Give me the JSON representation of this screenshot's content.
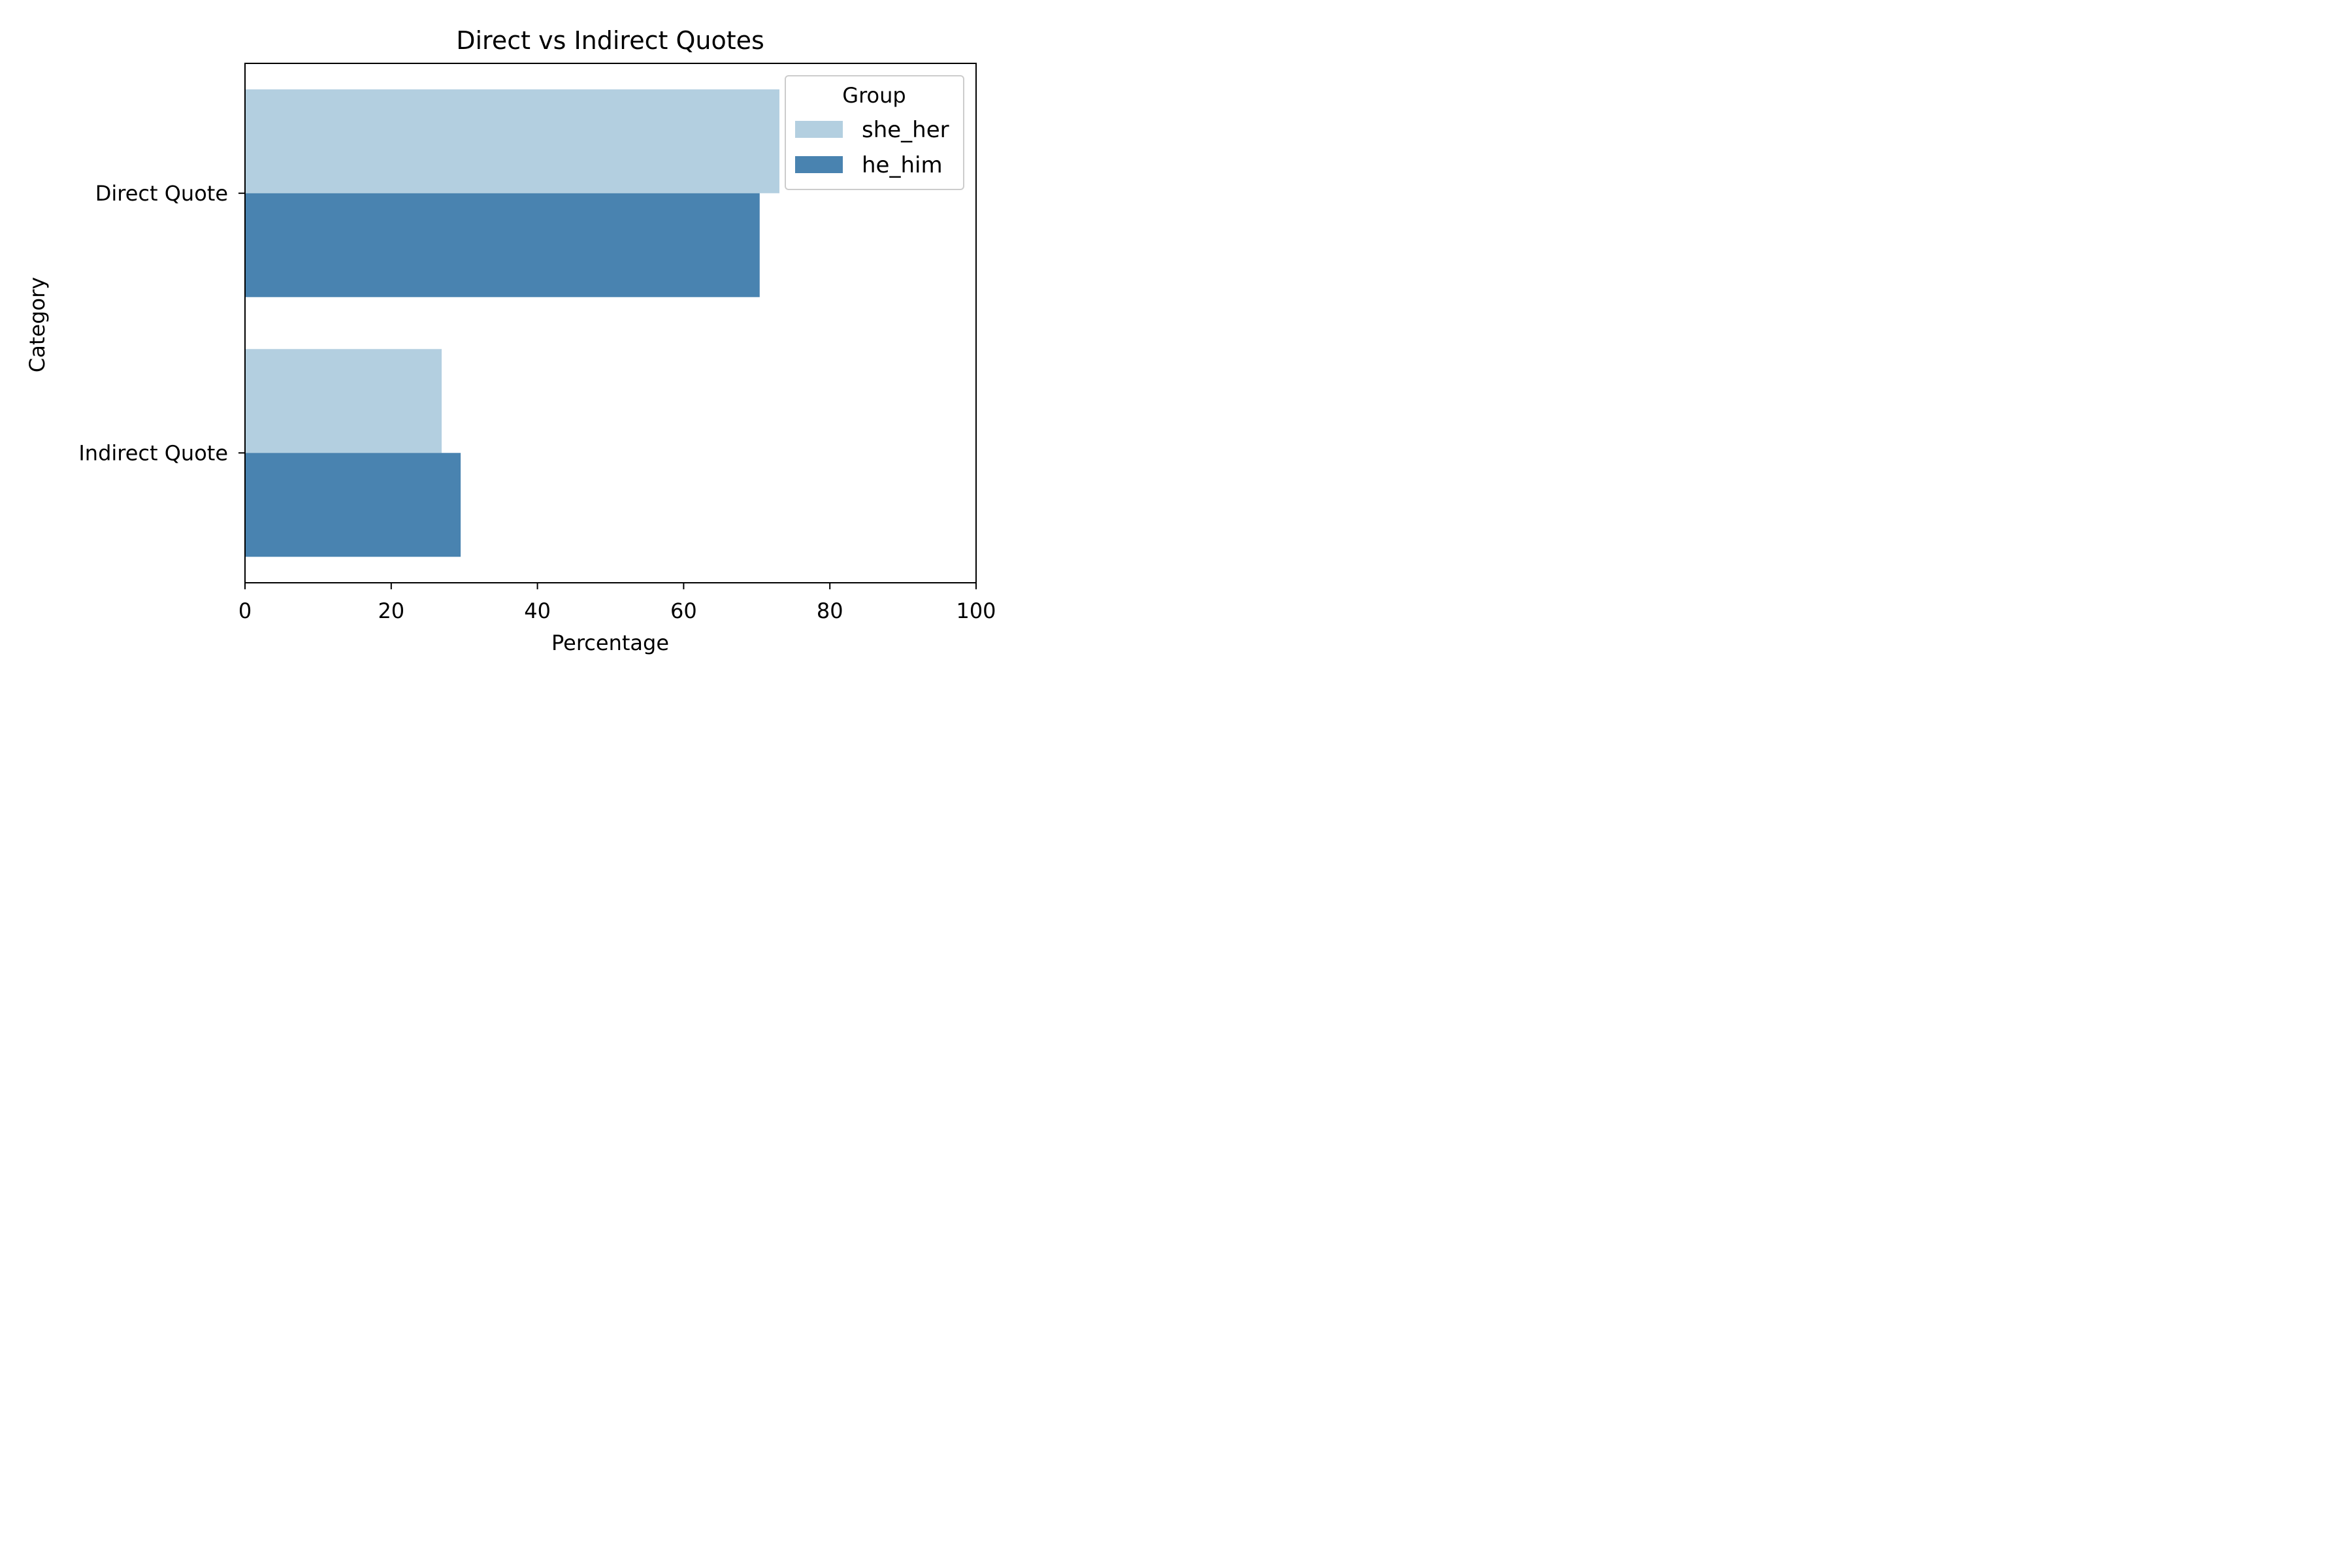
{
  "chart_data": {
    "type": "bar",
    "orientation": "horizontal",
    "title": "Direct vs Indirect Quotes",
    "xlabel": "Percentage",
    "ylabel": "Category",
    "xlim": [
      0,
      100
    ],
    "xticks": [
      "0",
      "20",
      "40",
      "60",
      "80",
      "100"
    ],
    "categories": [
      "Direct Quote",
      "Indirect Quote"
    ],
    "legend_title": "Group",
    "legend_position": "top-right",
    "grid": false,
    "series": [
      {
        "name": "she_her",
        "values": [
          73.1,
          26.9
        ],
        "color": "#b3cfe0"
      },
      {
        "name": "he_him",
        "values": [
          70.4,
          29.5
        ],
        "color": "#4983b0"
      }
    ]
  }
}
